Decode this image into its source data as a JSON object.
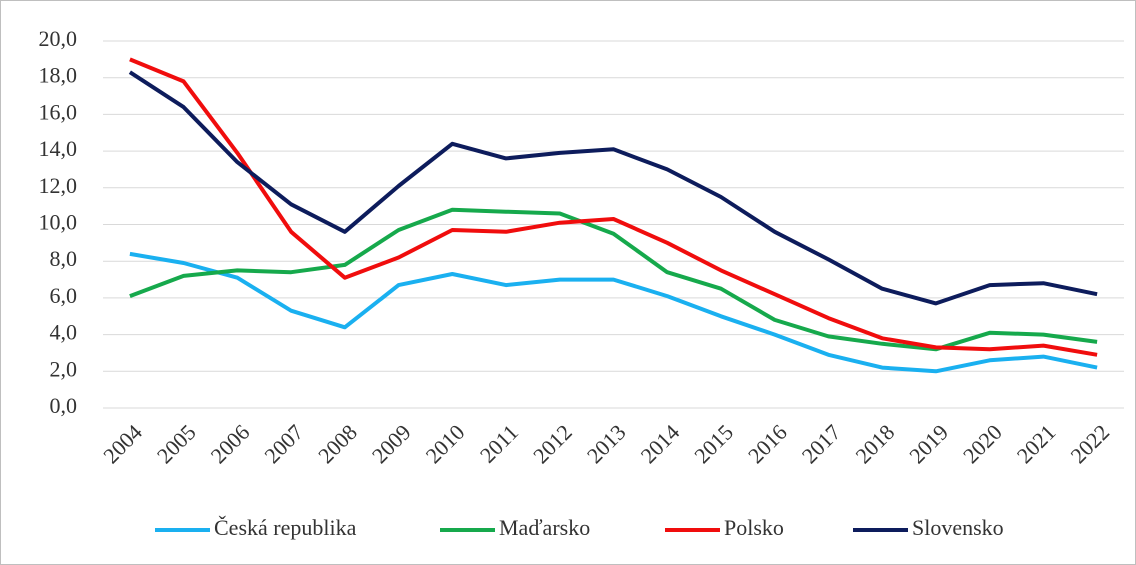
{
  "chart_data": {
    "type": "line",
    "categories": [
      "2004",
      "2005",
      "2006",
      "2007",
      "2008",
      "2009",
      "2010",
      "2011",
      "2012",
      "2013",
      "2014",
      "2015",
      "2016",
      "2017",
      "2018",
      "2019",
      "2020",
      "2021",
      "2022"
    ],
    "series": [
      {
        "name": "Česká republika",
        "color": "#1ab0f0",
        "values": [
          8.4,
          7.9,
          7.1,
          5.3,
          4.4,
          6.7,
          7.3,
          6.7,
          7.0,
          7.0,
          6.1,
          5.0,
          4.0,
          2.9,
          2.2,
          2.0,
          2.6,
          2.8,
          2.2
        ]
      },
      {
        "name": "Maďarsko",
        "color": "#16a94c",
        "values": [
          6.1,
          7.2,
          7.5,
          7.4,
          7.8,
          9.7,
          10.8,
          10.7,
          10.6,
          9.5,
          7.4,
          6.5,
          4.8,
          3.9,
          3.5,
          3.2,
          4.1,
          4.0,
          3.6
        ]
      },
      {
        "name": "Polsko",
        "color": "#f00d0d",
        "values": [
          19.0,
          17.8,
          13.9,
          9.6,
          7.1,
          8.2,
          9.7,
          9.6,
          10.1,
          10.3,
          9.0,
          7.5,
          6.2,
          4.9,
          3.8,
          3.3,
          3.2,
          3.4,
          2.9
        ]
      },
      {
        "name": "Slovensko",
        "color": "#0d1c5c",
        "values": [
          18.3,
          16.4,
          13.4,
          11.1,
          9.6,
          12.1,
          14.4,
          13.6,
          13.9,
          14.1,
          13.0,
          11.5,
          9.6,
          8.1,
          6.5,
          5.7,
          6.7,
          6.8,
          6.2
        ]
      }
    ],
    "ylim": [
      0,
      20
    ],
    "yticks": [
      {
        "value": 0,
        "label": "0,0"
      },
      {
        "value": 2,
        "label": "2,0"
      },
      {
        "value": 4,
        "label": "4,0"
      },
      {
        "value": 6,
        "label": "6,0"
      },
      {
        "value": 8,
        "label": "8,0"
      },
      {
        "value": 10,
        "label": "10,0"
      },
      {
        "value": 12,
        "label": "12,0"
      },
      {
        "value": 14,
        "label": "14,0"
      },
      {
        "value": 16,
        "label": "16,0"
      },
      {
        "value": 18,
        "label": "18,0"
      },
      {
        "value": 20,
        "label": "20,0"
      }
    ],
    "grid": true,
    "legend": "bottom"
  }
}
